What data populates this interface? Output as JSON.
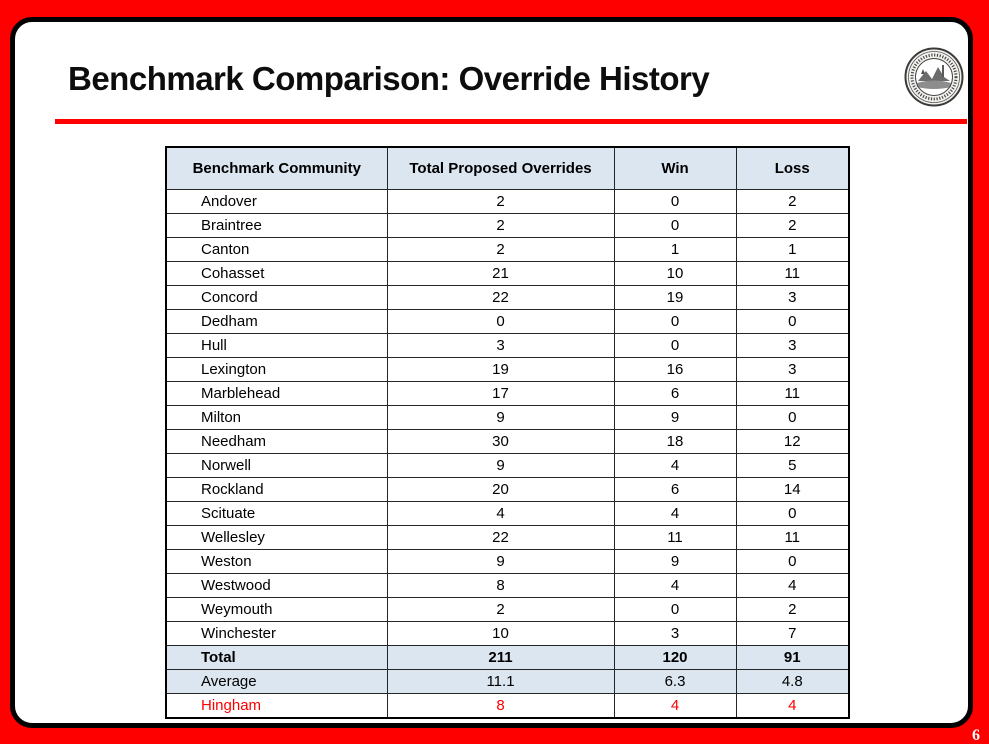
{
  "slide": {
    "title": "Benchmark Comparison: Override History",
    "page_number": "6",
    "seal_icon": "town-seal",
    "colors": {
      "frame_red": "#fe0000",
      "rule_red": "#fe0000",
      "header_bg": "#dce6f1",
      "highlight_text": "#ff0000",
      "border_black": "#000000"
    }
  },
  "table": {
    "headers": [
      "Benchmark Community",
      "Total Proposed Overrides",
      "Win",
      "Loss"
    ],
    "rows": [
      {
        "community": "Andover",
        "total": "2",
        "win": "0",
        "loss": "2",
        "style": "normal"
      },
      {
        "community": "Braintree",
        "total": "2",
        "win": "0",
        "loss": "2",
        "style": "normal"
      },
      {
        "community": "Canton",
        "total": "2",
        "win": "1",
        "loss": "1",
        "style": "normal"
      },
      {
        "community": "Cohasset",
        "total": "21",
        "win": "10",
        "loss": "11",
        "style": "normal"
      },
      {
        "community": "Concord",
        "total": "22",
        "win": "19",
        "loss": "3",
        "style": "normal"
      },
      {
        "community": "Dedham",
        "total": "0",
        "win": "0",
        "loss": "0",
        "style": "normal"
      },
      {
        "community": "Hull",
        "total": "3",
        "win": "0",
        "loss": "3",
        "style": "normal"
      },
      {
        "community": "Lexington",
        "total": "19",
        "win": "16",
        "loss": "3",
        "style": "normal"
      },
      {
        "community": "Marblehead",
        "total": "17",
        "win": "6",
        "loss": "11",
        "style": "normal"
      },
      {
        "community": "Milton",
        "total": "9",
        "win": "9",
        "loss": "0",
        "style": "normal"
      },
      {
        "community": "Needham",
        "total": "30",
        "win": "18",
        "loss": "12",
        "style": "normal"
      },
      {
        "community": "Norwell",
        "total": "9",
        "win": "4",
        "loss": "5",
        "style": "normal"
      },
      {
        "community": "Rockland",
        "total": "20",
        "win": "6",
        "loss": "14",
        "style": "normal"
      },
      {
        "community": "Scituate",
        "total": "4",
        "win": "4",
        "loss": "0",
        "style": "normal"
      },
      {
        "community": "Wellesley",
        "total": "22",
        "win": "11",
        "loss": "11",
        "style": "normal"
      },
      {
        "community": "Weston",
        "total": "9",
        "win": "9",
        "loss": "0",
        "style": "normal"
      },
      {
        "community": "Westwood",
        "total": "8",
        "win": "4",
        "loss": "4",
        "style": "normal"
      },
      {
        "community": "Weymouth",
        "total": "2",
        "win": "0",
        "loss": "2",
        "style": "normal"
      },
      {
        "community": "Winchester",
        "total": "10",
        "win": "3",
        "loss": "7",
        "style": "normal"
      },
      {
        "community": "Total",
        "total": "211",
        "win": "120",
        "loss": "91",
        "style": "total"
      },
      {
        "community": "Average",
        "total": "11.1",
        "win": "6.3",
        "loss": "4.8",
        "style": "average"
      },
      {
        "community": "Hingham",
        "total": "8",
        "win": "4",
        "loss": "4",
        "style": "highlight"
      }
    ]
  }
}
